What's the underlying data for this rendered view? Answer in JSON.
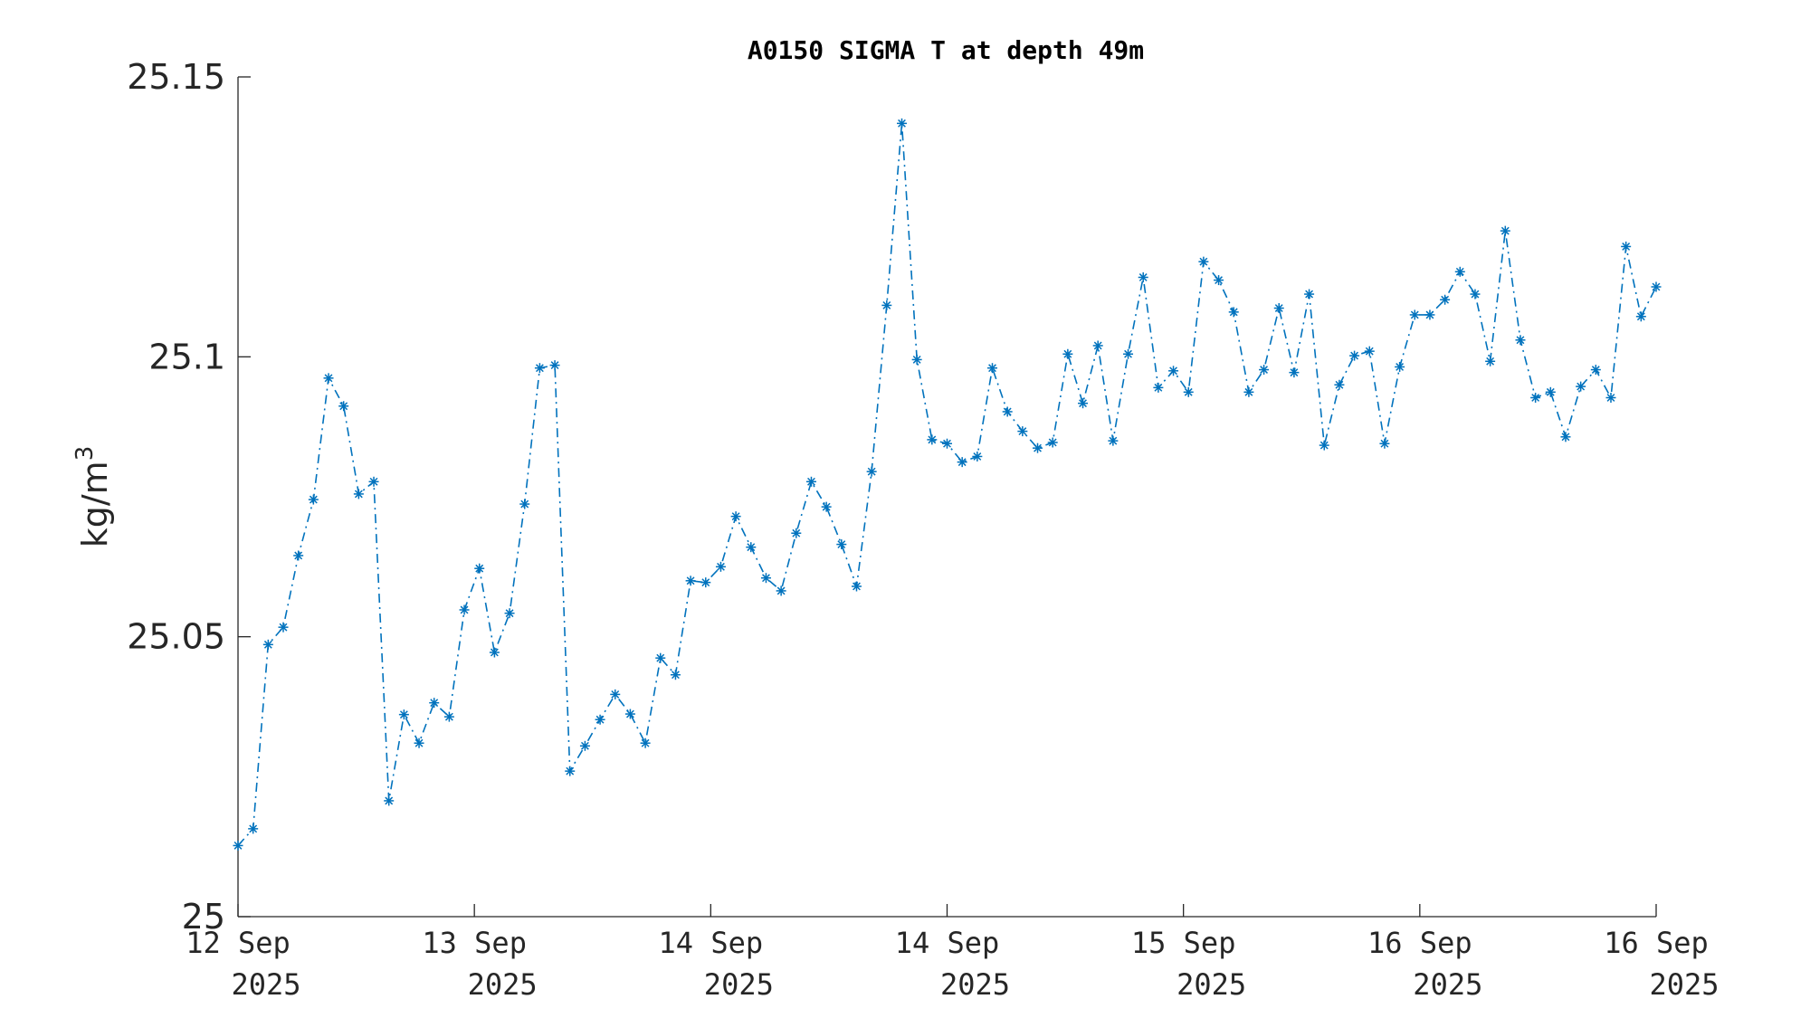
{
  "chart_data": {
    "type": "line",
    "title": "A0150 SIGMA T at depth 49m",
    "ylabel_base": "kg/m",
    "ylabel_sup": "3",
    "ylim": [
      25,
      25.15
    ],
    "y_ticks": [
      "25",
      "25.05",
      "25.1",
      "25.15"
    ],
    "x_range": [
      0,
      6
    ],
    "x_ticks": [
      {
        "day": "12 Sep",
        "year": "2025"
      },
      {
        "day": "13 Sep",
        "year": "2025"
      },
      {
        "day": "14 Sep",
        "year": "2025"
      },
      {
        "day": "14 Sep",
        "year": "2025"
      },
      {
        "day": "15 Sep",
        "year": "2025"
      },
      {
        "day": "16 Sep",
        "year": "2025"
      },
      {
        "day": "16 Sep",
        "year": "2025"
      }
    ],
    "grid": false,
    "series": [
      {
        "color": "#0072BD",
        "marker": "asterisk",
        "line_style": "dash-dot",
        "values": [
          25.0127,
          25.0157,
          25.0486,
          25.0517,
          25.0645,
          25.0745,
          25.0962,
          25.0912,
          25.0755,
          25.0777,
          25.0207,
          25.0361,
          25.031,
          25.0382,
          25.0357,
          25.0548,
          25.0622,
          25.0472,
          25.0542,
          25.0737,
          25.098,
          25.0985,
          25.026,
          25.0305,
          25.0352,
          25.0397,
          25.0362,
          25.031,
          25.0462,
          25.0432,
          25.06,
          25.0597,
          25.0625,
          25.0715,
          25.066,
          25.0605,
          25.0582,
          25.0685,
          25.0777,
          25.0732,
          25.0665,
          25.059,
          25.0795,
          25.1092,
          25.1417,
          25.0995,
          25.0852,
          25.0845,
          25.0812,
          25.0822,
          25.098,
          25.0902,
          25.0867,
          25.0837,
          25.0847,
          25.1005,
          25.0917,
          25.102,
          25.085,
          25.1005,
          25.1142,
          25.0945,
          25.0975,
          25.0937,
          25.117,
          25.1137,
          25.108,
          25.0937,
          25.0977,
          25.1087,
          25.0972,
          25.1112,
          25.0842,
          25.095,
          25.1002,
          25.101,
          25.0845,
          25.0982,
          25.1075,
          25.1075,
          25.1102,
          25.1152,
          25.1112,
          25.0992,
          25.1225,
          25.103,
          25.0927,
          25.0937,
          25.0857,
          25.0947,
          25.0977,
          25.0927,
          25.1197,
          25.1072,
          25.1125
        ]
      }
    ]
  }
}
